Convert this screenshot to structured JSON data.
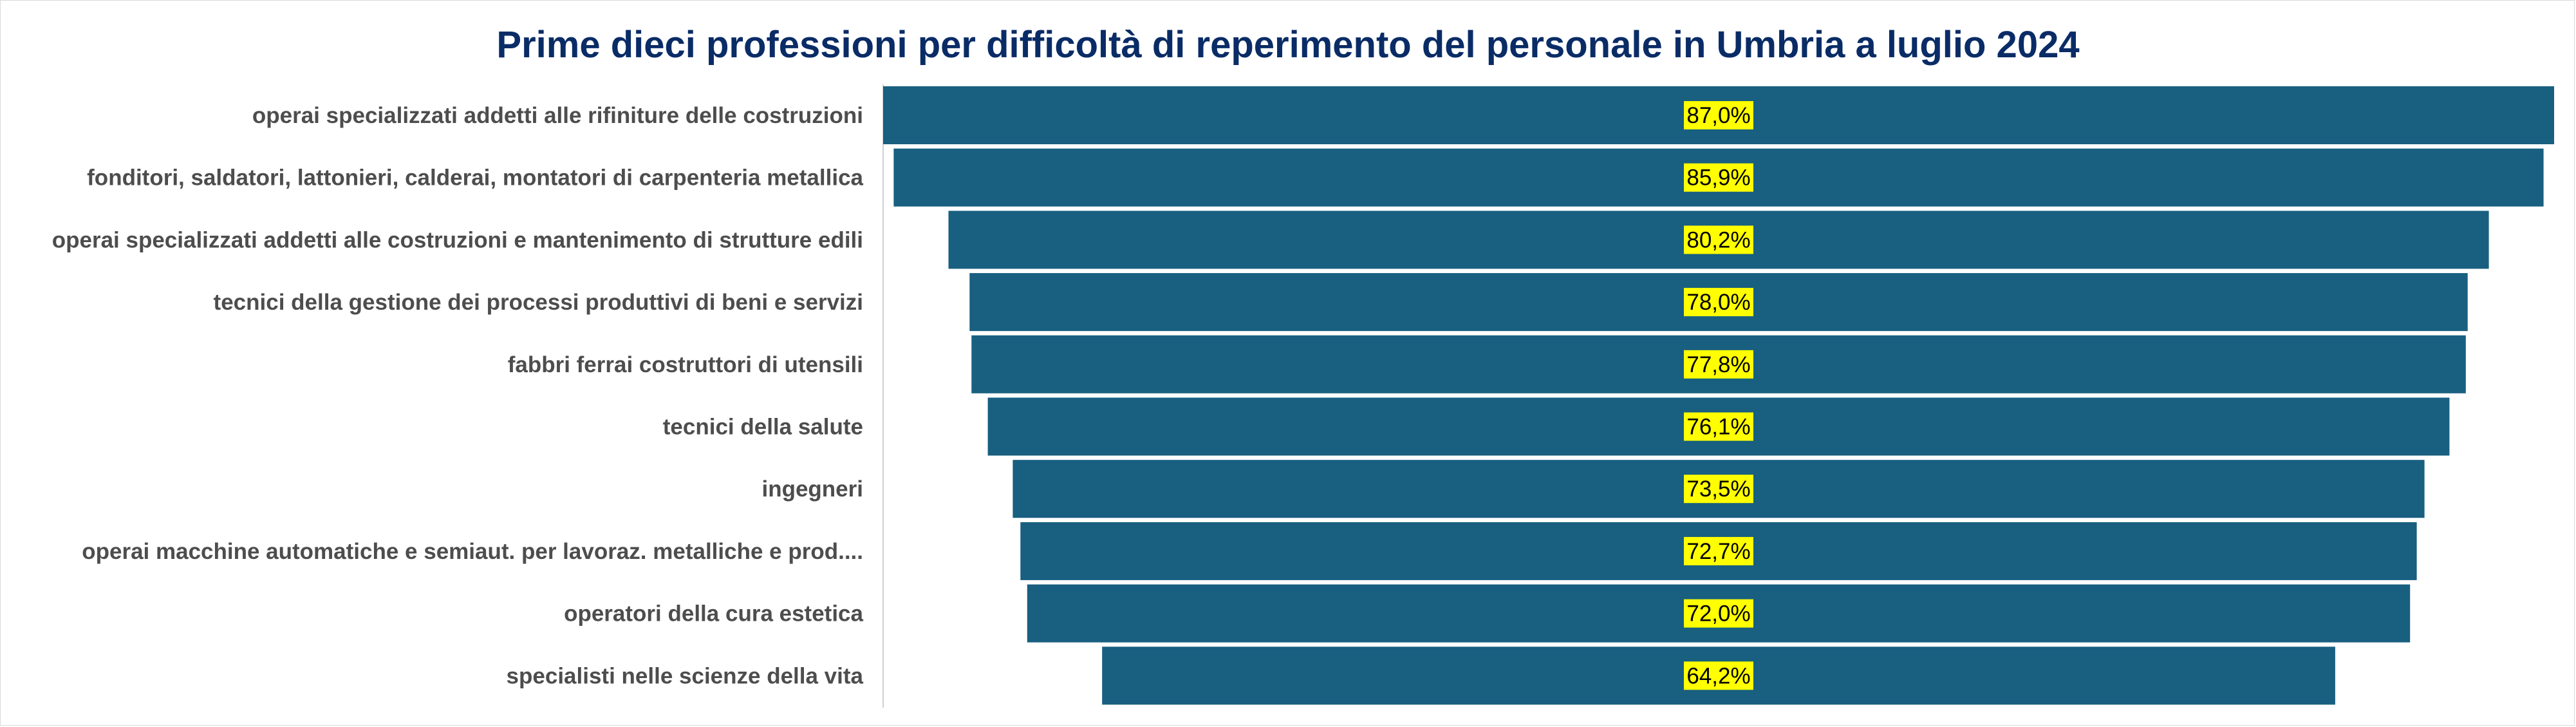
{
  "chart_data": {
    "type": "bar",
    "orientation": "horizontal-funnel",
    "title": "Prime dieci professioni per difficoltà di reperimento del personale in Umbria a luglio 2024",
    "categories": [
      "operai specializzati addetti alle rifiniture delle costruzioni",
      "fonditori, saldatori, lattonieri, calderai, montatori di carpenteria metallica",
      "operai specializzati addetti alle costruzioni e mantenimento di strutture edili",
      "tecnici della gestione dei processi produttivi di beni e servizi",
      "fabbri ferrai costruttori di utensili",
      "tecnici della salute",
      "ingegneri",
      "operai macchine automatiche e semiaut. per lavoraz. metalliche e prod....",
      "operatori della cura estetica",
      "specialisti nelle scienze della vita"
    ],
    "values": [
      87.0,
      85.9,
      80.2,
      78.0,
      77.8,
      76.1,
      73.5,
      72.7,
      72.0,
      64.2
    ],
    "value_labels": [
      "87,0%",
      "85,9%",
      "80,2%",
      "78,0%",
      "77,8%",
      "76,1%",
      "73,5%",
      "72,7%",
      "72,0%",
      "64,2%"
    ],
    "unit": "%",
    "xlim": [
      0,
      87.0
    ],
    "grid": false,
    "legend": "none",
    "bar_color": "#185f80",
    "label_highlight_color": "#ffff00",
    "title_color": "#0a2c66",
    "category_label_color": "#4d4d4d"
  }
}
